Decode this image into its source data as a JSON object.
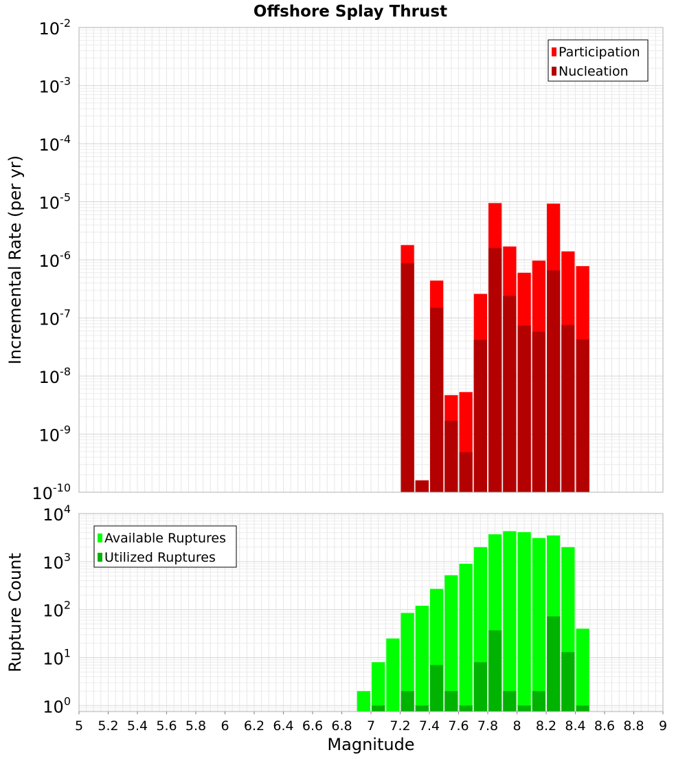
{
  "chart_data": [
    {
      "type": "bar",
      "title": "Offshore Splay Thrust",
      "ylabel": "Incremental Rate (per yr)",
      "xlabel": "",
      "x_range": [
        5,
        9
      ],
      "bin_width": 0.1,
      "y_scale": "log",
      "ylim": [
        1e-10,
        0.01
      ],
      "y_ticks": [
        {
          "base": "10",
          "exp": "-10",
          "value": 1e-10
        },
        {
          "base": "10",
          "exp": "-9",
          "value": 1e-09
        },
        {
          "base": "10",
          "exp": "-8",
          "value": 1e-08
        },
        {
          "base": "10",
          "exp": "-7",
          "value": 1e-07
        },
        {
          "base": "10",
          "exp": "-6",
          "value": 1e-06
        },
        {
          "base": "10",
          "exp": "-5",
          "value": 1e-05
        },
        {
          "base": "10",
          "exp": "-4",
          "value": 0.0001
        },
        {
          "base": "10",
          "exp": "-3",
          "value": 0.001
        },
        {
          "base": "10",
          "exp": "-2",
          "value": 0.01
        }
      ],
      "grid": true,
      "legend_position": "top-right",
      "series": [
        {
          "name": "Participation",
          "color": "#ff0000",
          "x": [
            7.25,
            7.35,
            7.45,
            7.55,
            7.65,
            7.75,
            7.85,
            7.95,
            8.05,
            8.15,
            8.25,
            8.35,
            8.45
          ],
          "values": [
            1.8e-06,
            1.6e-10,
            4.4e-07,
            4.7e-09,
            5.3e-09,
            2.6e-07,
            9.5e-06,
            1.7e-06,
            6e-07,
            9.7e-07,
            9.3e-06,
            1.4e-06,
            7.8e-07
          ]
        },
        {
          "name": "Nucleation",
          "color": "#b30000",
          "x": [
            7.25,
            7.35,
            7.45,
            7.55,
            7.65,
            7.75,
            7.85,
            7.95,
            8.05,
            8.15,
            8.25,
            8.35,
            8.45
          ],
          "values": [
            8.8e-07,
            1.6e-10,
            1.5e-07,
            1.7e-09,
            4.9e-10,
            4.2e-08,
            1.6e-06,
            2.4e-07,
            7.4e-08,
            5.8e-08,
            6.6e-07,
            7.6e-08,
            4.3e-08
          ]
        }
      ]
    },
    {
      "type": "bar",
      "title": "",
      "ylabel": "Rupture Count",
      "xlabel": "Magnitude",
      "x_range": [
        5,
        9
      ],
      "bin_width": 0.1,
      "x_ticks": [
        "5",
        "5.2",
        "5.4",
        "5.6",
        "5.8",
        "6",
        "6.2",
        "6.4",
        "6.6",
        "6.8",
        "7",
        "7.2",
        "7.4",
        "7.6",
        "7.8",
        "8",
        "8.2",
        "8.4",
        "8.6",
        "8.8",
        "9"
      ],
      "y_scale": "log",
      "ylim": [
        0.75,
        10000
      ],
      "y_ticks": [
        {
          "base": "10",
          "exp": "0",
          "value": 1
        },
        {
          "base": "10",
          "exp": "1",
          "value": 10
        },
        {
          "base": "10",
          "exp": "2",
          "value": 100
        },
        {
          "base": "10",
          "exp": "3",
          "value": 1000
        },
        {
          "base": "10",
          "exp": "4",
          "value": 10000
        }
      ],
      "grid": true,
      "legend_position": "top-left",
      "series": [
        {
          "name": "Available Ruptures",
          "color": "#00ff00",
          "x": [
            6.95,
            7.05,
            7.15,
            7.25,
            7.35,
            7.45,
            7.55,
            7.65,
            7.75,
            7.85,
            7.95,
            8.05,
            8.15,
            8.25,
            8.35,
            8.45
          ],
          "values": [
            2,
            8,
            25,
            85,
            120,
            270,
            520,
            900,
            2000,
            3700,
            4300,
            4100,
            3100,
            3500,
            2000,
            40
          ]
        },
        {
          "name": "Utilized Ruptures",
          "color": "#00b300",
          "x": [
            7.05,
            7.25,
            7.35,
            7.45,
            7.55,
            7.65,
            7.75,
            7.85,
            7.95,
            8.05,
            8.15,
            8.25,
            8.35,
            8.45
          ],
          "values": [
            1,
            2,
            1,
            7,
            2,
            1,
            8,
            37,
            2,
            1,
            2,
            72,
            13,
            1
          ]
        }
      ]
    }
  ]
}
